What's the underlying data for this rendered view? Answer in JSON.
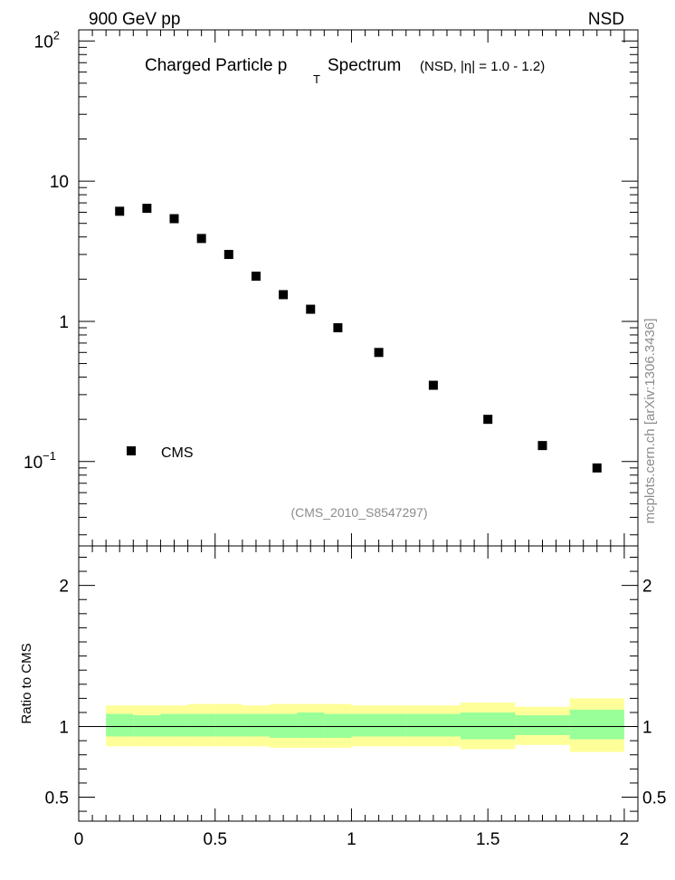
{
  "header": {
    "left": "900 GeV pp",
    "right": "NSD"
  },
  "side_label": "mcplots.cern.ch [arXiv:1306.3436]",
  "watermark": "(CMS_2010_S8547297)",
  "chart_data": [
    {
      "type": "scatter",
      "title_main": "Charged Particle p",
      "title_sub": "T",
      "title_end": "Spectrum",
      "title_detail": "(NSD, |η| = 1.0 - 1.2)",
      "yscale": "log",
      "ylim": [
        0.025,
        120
      ],
      "xlim": [
        0,
        2.05
      ],
      "y_tick_labels": [
        {
          "v": 100,
          "base": "10",
          "exp": "2"
        },
        {
          "v": 10,
          "base": "10",
          "exp": ""
        },
        {
          "v": 1,
          "base": "1",
          "exp": ""
        },
        {
          "v": 0.1,
          "base": "10",
          "exp": "−1"
        }
      ],
      "legend": {
        "position": "bottom-left",
        "entries": [
          "CMS"
        ]
      },
      "series": [
        {
          "name": "CMS",
          "color": "#000000",
          "x": [
            0.15,
            0.25,
            0.35,
            0.45,
            0.55,
            0.65,
            0.75,
            0.85,
            0.95,
            1.1,
            1.3,
            1.5,
            1.7,
            1.9
          ],
          "y": [
            6.1,
            6.4,
            5.4,
            3.9,
            3.0,
            2.1,
            1.55,
            1.22,
            0.9,
            0.6,
            0.35,
            0.2,
            0.13,
            0.09
          ]
        }
      ]
    },
    {
      "type": "area",
      "ylabel": "Ratio to CMS",
      "xlim": [
        0,
        2.05
      ],
      "ylim": [
        0.33,
        2.28
      ],
      "y_ticks": [
        "0.5",
        "1",
        "2"
      ],
      "x_ticks": [
        "0",
        "0.5",
        "1",
        "1.5",
        "2"
      ],
      "reference_line": 1,
      "band_colors": {
        "outer": "#ffff99",
        "inner": "#99ff99"
      },
      "bins": [
        {
          "lo": 0.1,
          "hi": 0.2,
          "outer": [
            0.86,
            1.15
          ],
          "inner": [
            0.93,
            1.09
          ]
        },
        {
          "lo": 0.2,
          "hi": 0.3,
          "outer": [
            0.86,
            1.15
          ],
          "inner": [
            0.93,
            1.08
          ]
        },
        {
          "lo": 0.3,
          "hi": 0.4,
          "outer": [
            0.86,
            1.15
          ],
          "inner": [
            0.93,
            1.09
          ]
        },
        {
          "lo": 0.4,
          "hi": 0.5,
          "outer": [
            0.86,
            1.16
          ],
          "inner": [
            0.93,
            1.09
          ]
        },
        {
          "lo": 0.5,
          "hi": 0.6,
          "outer": [
            0.86,
            1.16
          ],
          "inner": [
            0.93,
            1.09
          ]
        },
        {
          "lo": 0.6,
          "hi": 0.7,
          "outer": [
            0.86,
            1.15
          ],
          "inner": [
            0.93,
            1.09
          ]
        },
        {
          "lo": 0.7,
          "hi": 0.8,
          "outer": [
            0.85,
            1.16
          ],
          "inner": [
            0.92,
            1.09
          ]
        },
        {
          "lo": 0.8,
          "hi": 0.9,
          "outer": [
            0.85,
            1.16
          ],
          "inner": [
            0.92,
            1.1
          ]
        },
        {
          "lo": 0.9,
          "hi": 1.0,
          "outer": [
            0.85,
            1.16
          ],
          "inner": [
            0.92,
            1.09
          ]
        },
        {
          "lo": 1.0,
          "hi": 1.2,
          "outer": [
            0.86,
            1.15
          ],
          "inner": [
            0.93,
            1.09
          ]
        },
        {
          "lo": 1.2,
          "hi": 1.4,
          "outer": [
            0.86,
            1.15
          ],
          "inner": [
            0.93,
            1.09
          ]
        },
        {
          "lo": 1.4,
          "hi": 1.6,
          "outer": [
            0.84,
            1.17
          ],
          "inner": [
            0.91,
            1.1
          ]
        },
        {
          "lo": 1.6,
          "hi": 1.8,
          "outer": [
            0.87,
            1.14
          ],
          "inner": [
            0.94,
            1.08
          ]
        },
        {
          "lo": 1.8,
          "hi": 2.0,
          "outer": [
            0.82,
            1.2
          ],
          "inner": [
            0.91,
            1.12
          ]
        }
      ]
    }
  ]
}
